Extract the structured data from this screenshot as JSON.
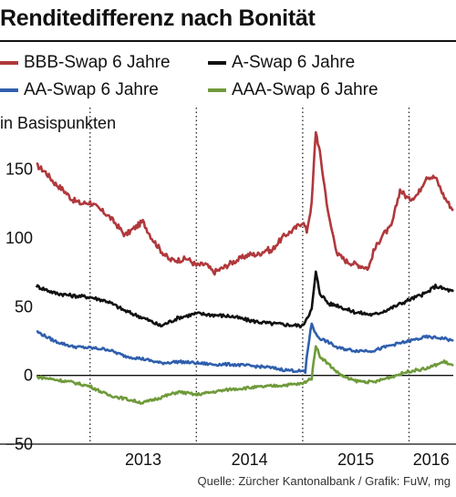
{
  "title": "Renditedifferenz nach Bonität",
  "unit_label": "in Basispunkten",
  "source": "Quelle: Zürcher Kantonalbank / Grafik: FuW, mg",
  "chart_data": {
    "type": "line",
    "title": "Renditedifferenz nach Bonität",
    "ylabel": "in Basispunkten",
    "xlabel": "",
    "ylim": [
      -50,
      175
    ],
    "xlim": [
      "2012-07-01",
      "2016-06-01"
    ],
    "yticks": [
      -50,
      0,
      50,
      100,
      150
    ],
    "year_labels": [
      "2013",
      "2014",
      "2015",
      "2016"
    ],
    "grid": "dotted vertical at year boundaries",
    "legend": "top, two columns",
    "series": [
      {
        "name": "BBB-Swap 6 Jahre",
        "color": "#b0383c",
        "x": [
          "2012-07-01",
          "2012-08-01",
          "2012-09-01",
          "2012-10-01",
          "2012-11-01",
          "2012-12-01",
          "2013-01-01",
          "2013-02-01",
          "2013-03-01",
          "2013-04-01",
          "2013-05-01",
          "2013-06-01",
          "2013-07-01",
          "2013-08-01",
          "2013-09-01",
          "2013-10-01",
          "2013-11-01",
          "2013-12-01",
          "2014-01-01",
          "2014-02-01",
          "2014-03-01",
          "2014-04-01",
          "2014-05-01",
          "2014-06-01",
          "2014-07-01",
          "2014-08-01",
          "2014-09-01",
          "2014-09-15",
          "2014-10-01",
          "2014-11-01",
          "2014-12-01",
          "2015-01-01",
          "2015-01-15",
          "2015-02-01",
          "2015-02-15",
          "2015-03-01",
          "2015-04-01",
          "2015-05-01",
          "2015-06-01",
          "2015-07-01",
          "2015-08-01",
          "2015-08-15",
          "2015-09-01",
          "2015-10-01",
          "2015-11-01",
          "2015-12-01",
          "2016-01-01",
          "2016-02-01",
          "2016-03-01",
          "2016-04-01",
          "2016-05-01",
          "2016-06-01"
        ],
        "values": [
          153,
          148,
          140,
          135,
          128,
          125,
          126,
          121,
          117,
          110,
          102,
          107,
          112,
          100,
          91,
          84,
          84,
          85,
          80,
          81,
          75,
          78,
          82,
          85,
          88,
          88,
          92,
          90,
          95,
          102,
          106,
          112,
          105,
          125,
          178,
          162,
          115,
          88,
          83,
          81,
          79,
          78,
          90,
          102,
          108,
          135,
          128,
          132,
          145,
          144,
          130,
          120
        ]
      },
      {
        "name": "A-Swap 6 Jahre",
        "color": "#111111",
        "x": [
          "2012-07-01",
          "2012-09-01",
          "2012-11-01",
          "2013-01-01",
          "2013-03-01",
          "2013-05-01",
          "2013-07-01",
          "2013-09-01",
          "2013-11-01",
          "2014-01-01",
          "2014-03-01",
          "2014-05-01",
          "2014-07-01",
          "2014-09-01",
          "2014-11-01",
          "2015-01-01",
          "2015-01-15",
          "2015-02-01",
          "2015-02-15",
          "2015-03-01",
          "2015-04-01",
          "2015-05-01",
          "2015-06-01",
          "2015-07-01",
          "2015-09-01",
          "2015-11-01",
          "2016-01-01",
          "2016-03-01",
          "2016-04-01",
          "2016-05-01",
          "2016-06-01"
        ],
        "values": [
          65,
          60,
          58,
          57,
          54,
          47,
          42,
          36,
          42,
          45,
          44,
          43,
          40,
          38,
          37,
          36,
          42,
          48,
          75,
          60,
          52,
          51,
          48,
          46,
          44,
          49,
          55,
          60,
          65,
          63,
          61
        ]
      },
      {
        "name": "AA-Swap 6 Jahre",
        "color": "#2f5fad",
        "x": [
          "2012-07-01",
          "2012-09-01",
          "2012-11-01",
          "2013-01-01",
          "2013-03-01",
          "2013-05-01",
          "2013-07-01",
          "2013-09-01",
          "2013-11-01",
          "2014-01-01",
          "2014-03-01",
          "2014-05-01",
          "2014-07-01",
          "2014-09-01",
          "2014-11-01",
          "2015-01-01",
          "2015-01-10",
          "2015-01-15",
          "2015-02-01",
          "2015-02-15",
          "2015-03-01",
          "2015-04-01",
          "2015-05-01",
          "2015-06-01",
          "2015-07-01",
          "2015-09-01",
          "2015-11-01",
          "2016-01-01",
          "2016-03-01",
          "2016-05-01",
          "2016-06-01"
        ],
        "values": [
          32,
          25,
          21,
          20,
          19,
          14,
          12,
          9,
          10,
          9,
          8,
          8,
          7,
          6,
          4,
          3,
          2,
          14,
          38,
          30,
          27,
          24,
          20,
          19,
          18,
          18,
          22,
          25,
          28,
          27,
          25
        ]
      },
      {
        "name": "AAA-Swap 6 Jahre",
        "color": "#6f9a3a",
        "x": [
          "2012-07-01",
          "2012-09-01",
          "2012-11-01",
          "2013-01-01",
          "2013-03-01",
          "2013-05-01",
          "2013-07-01",
          "2013-09-01",
          "2013-11-01",
          "2014-01-01",
          "2014-03-01",
          "2014-05-01",
          "2014-07-01",
          "2014-09-01",
          "2014-11-01",
          "2015-01-01",
          "2015-01-15",
          "2015-02-01",
          "2015-02-15",
          "2015-03-01",
          "2015-04-01",
          "2015-05-01",
          "2015-06-01",
          "2015-07-01",
          "2015-09-01",
          "2015-11-01",
          "2016-01-01",
          "2016-03-01",
          "2016-05-01",
          "2016-06-01"
        ],
        "values": [
          -1,
          -3,
          -5,
          -8,
          -14,
          -17,
          -20,
          -16,
          -12,
          -14,
          -12,
          -10,
          -9,
          -8,
          -7,
          -6,
          -4,
          -2,
          22,
          14,
          8,
          2,
          -2,
          -4,
          -5,
          -1,
          3,
          5,
          10,
          7
        ]
      }
    ]
  }
}
